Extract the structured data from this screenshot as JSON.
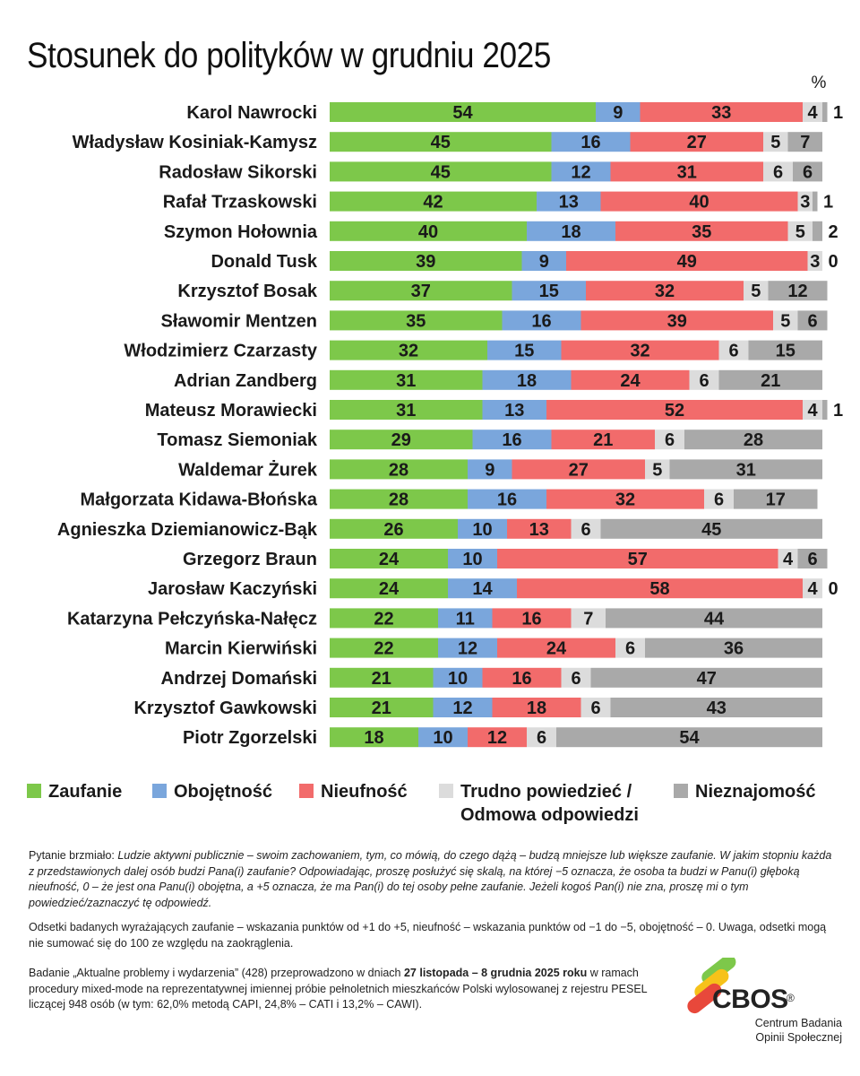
{
  "chart_data": {
    "type": "bar",
    "orientation": "horizontal",
    "stacked": true,
    "title": "Stosunek do polityków w grudniu 2025",
    "unit": "%",
    "categories": [
      "Karol Nawrocki",
      "Władysław Kosiniak-Kamysz",
      "Radosław Sikorski",
      "Rafał Trzaskowski",
      "Szymon Hołownia",
      "Donald Tusk",
      "Krzysztof Bosak",
      "Sławomir Mentzen",
      "Włodzimierz Czarzasty",
      "Adrian Zandberg",
      "Mateusz Morawiecki",
      "Tomasz Siemoniak",
      "Waldemar Żurek",
      "Małgorzata Kidawa-Błońska",
      "Agnieszka Dziemianowicz-Bąk",
      "Grzegorz Braun",
      "Jarosław Kaczyński",
      "Katarzyna Pełczyńska-Nałęcz",
      "Marcin Kierwiński",
      "Andrzej Domański",
      "Krzysztof Gawkowski",
      "Piotr Zgorzelski"
    ],
    "series": [
      {
        "name": "Zaufanie",
        "color": "#7dc84a",
        "values": [
          54,
          45,
          45,
          42,
          40,
          39,
          37,
          35,
          32,
          31,
          31,
          29,
          28,
          28,
          26,
          24,
          24,
          22,
          22,
          21,
          21,
          18
        ]
      },
      {
        "name": "Obojętność",
        "color": "#7aa6dc",
        "values": [
          9,
          16,
          12,
          13,
          18,
          9,
          15,
          16,
          15,
          18,
          13,
          16,
          9,
          16,
          10,
          10,
          14,
          11,
          12,
          10,
          12,
          10
        ]
      },
      {
        "name": "Nieufność",
        "color": "#f26b6b",
        "values": [
          33,
          27,
          31,
          40,
          35,
          49,
          32,
          39,
          32,
          24,
          52,
          21,
          27,
          32,
          13,
          57,
          58,
          16,
          24,
          16,
          18,
          12
        ]
      },
      {
        "name": "Trudno powiedzieć / Odmowa odpowiedzi",
        "color": "#dcdcdc",
        "values": [
          4,
          5,
          6,
          3,
          5,
          3,
          5,
          5,
          6,
          6,
          4,
          6,
          5,
          6,
          6,
          4,
          4,
          7,
          6,
          6,
          6,
          6
        ]
      },
      {
        "name": "Nieznajomość",
        "color": "#a9a9a9",
        "values": [
          1,
          7,
          6,
          1,
          2,
          0,
          12,
          6,
          15,
          21,
          1,
          28,
          31,
          17,
          45,
          6,
          0,
          44,
          36,
          47,
          43,
          54
        ]
      }
    ],
    "legend_position": "bottom",
    "grid": false
  },
  "legend": {
    "items": [
      {
        "label": "Zaufanie",
        "color": "#7dc84a"
      },
      {
        "label": "Obojętność",
        "color": "#7aa6dc"
      },
      {
        "label": "Nieufność",
        "color": "#f26b6b"
      },
      {
        "label_line1": "Trudno powiedzieć /",
        "label_line2": "Odmowa odpowiedzi",
        "color": "#dcdcdc"
      },
      {
        "label": "Nieznajomość",
        "color": "#a9a9a9"
      }
    ]
  },
  "notes": {
    "q_prefix": "Pytanie brzmiało: ",
    "q_text": "Ludzie aktywni publicznie – swoim zachowaniem, tym, co mówią, do czego dążą – budzą mniejsze lub większe zaufanie. W jakim stopniu każda z przedstawionych dalej osób budzi Pana(i) zaufanie? Odpowiadając, proszę posłużyć się skalą, na której −5 oznacza, że osoba ta budzi w Panu(i) głęboką nieufność, 0 – że jest ona Panu(i) obojętna, a +5 oznacza, że ma Pan(i) do tej osoby pełne zaufanie. Jeżeli kogoś Pan(i) nie zna, proszę mi o tym powiedzieć/zaznaczyć tę odpowiedź.",
    "method": "Odsetki badanych wyrażających zaufanie – wskazania punktów od +1 do +5, nieufność – wskazania punktów od −1 do −5, obojętność – 0. Uwaga, odsetki mogą nie sumować się do 100 ze względu na zaokrąglenia.",
    "study_a": "Badanie „Aktualne problemy i wydarzenia” (428) przeprowadzono w dniach ",
    "study_dates": "27 listopada – 8 grudnia 2025 roku",
    "study_b": " w ramach procedury mixed-mode na reprezentatywnej imiennej próbie pełnoletnich mieszkańców Polski wylosowanej z rejestru PESEL liczącej 948 osób (w tym: 62,0% metodą CAPI, 24,8% – CATI i 13,2% – CAWI)."
  },
  "logo": {
    "name": "CBOS",
    "reg": "®",
    "line1": "Centrum Badania",
    "line2": "Opinii Społecznej",
    "colors": [
      "#7dc84a",
      "#f6c21a",
      "#e8483b"
    ]
  }
}
